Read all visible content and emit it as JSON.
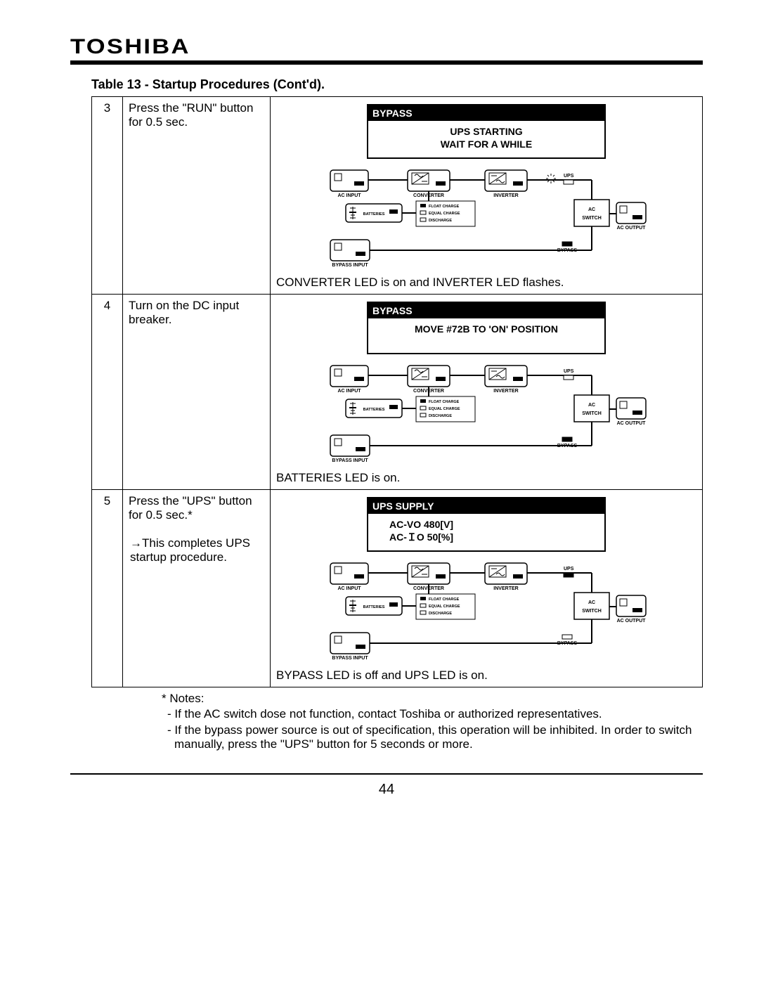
{
  "logo_text": "TOSHIBA",
  "table_title": "Table 13 - Startup Procedures (Cont'd).",
  "page_number": "44",
  "rows": [
    {
      "num": "3",
      "action": "Press the \"RUN\" button for 0.5 sec.",
      "lcd_header": "BYPASS",
      "lcd_line1": "UPS STARTING",
      "lcd_line2": "WAIT FOR A WHILE",
      "status": "CONVERTER LED is on and INVERTER LED flashes."
    },
    {
      "num": "4",
      "action": "Turn on the DC input breaker.",
      "lcd_header": "BYPASS",
      "lcd_line1": "MOVE #72B TO 'ON' POSITION",
      "lcd_line2": "",
      "status": "BATTERIES LED is on."
    },
    {
      "num": "5",
      "action_a": "Press the \"UPS\" button for 0.5 sec.*",
      "action_b": "→This completes UPS startup procedure.",
      "lcd_header": "UPS SUPPLY",
      "lcd_line1": "AC-VO   480[V]",
      "lcd_line2": "AC-ＩO    50[%]",
      "status": "BYPASS LED is off and UPS LED is on."
    }
  ],
  "notes_heading": "* Notes:",
  "note1": "- If the AC switch dose not function, contact Toshiba or authorized representatives.",
  "note2": "- If the bypass power source is out of specification, this operation will be inhibited. In order to switch manually, press the \"UPS\" button for 5 seconds or more.",
  "diagram_labels": {
    "ac_input": "AC INPUT",
    "converter": "CONVERTER",
    "inverter": "INVERTER",
    "ups": "UPS",
    "batteries": "BATTERIES",
    "float": "FLOAT CHARGE",
    "equal": "EQUAL CHARGE",
    "discharge": "DISCHARGE",
    "ac_switch1": "AC",
    "ac_switch2": "SWITCH",
    "ac_output": "AC OUTPUT",
    "bypass_input": "BYPASS INPUT",
    "bypass": "BYPASS"
  },
  "colors": {
    "black": "#000000",
    "white": "#ffffff"
  }
}
